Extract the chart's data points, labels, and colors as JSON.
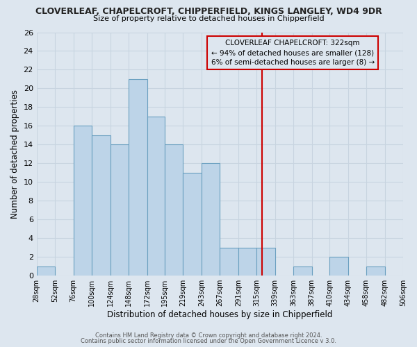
{
  "title": "CLOVERLEAF, CHAPELCROFT, CHIPPERFIELD, KINGS LANGLEY, WD4 9DR",
  "subtitle": "Size of property relative to detached houses in Chipperfield",
  "xlabel": "Distribution of detached houses by size in Chipperfield",
  "ylabel": "Number of detached properties",
  "bin_edges": [
    28,
    52,
    76,
    100,
    124,
    148,
    172,
    195,
    219,
    243,
    267,
    291,
    315,
    339,
    363,
    387,
    410,
    434,
    458,
    482,
    506
  ],
  "bin_labels": [
    "28sqm",
    "52sqm",
    "76sqm",
    "100sqm",
    "124sqm",
    "148sqm",
    "172sqm",
    "195sqm",
    "219sqm",
    "243sqm",
    "267sqm",
    "291sqm",
    "315sqm",
    "339sqm",
    "363sqm",
    "387sqm",
    "410sqm",
    "434sqm",
    "458sqm",
    "482sqm",
    "506sqm"
  ],
  "counts": [
    1,
    0,
    16,
    15,
    14,
    21,
    17,
    14,
    11,
    12,
    3,
    3,
    3,
    0,
    1,
    0,
    2,
    0,
    1,
    0
  ],
  "bar_facecolor": "#bdd4e8",
  "bar_edgecolor": "#6a9fc0",
  "marker_value": 322,
  "marker_color": "#cc0000",
  "annotation_title": "CLOVERLEAF CHAPELCROFT: 322sqm",
  "annotation_line1": "← 94% of detached houses are smaller (128)",
  "annotation_line2": "6% of semi-detached houses are larger (8) →",
  "annotation_box_color": "#cc0000",
  "ylim": [
    0,
    26
  ],
  "yticks": [
    0,
    2,
    4,
    6,
    8,
    10,
    12,
    14,
    16,
    18,
    20,
    22,
    24,
    26
  ],
  "grid_color": "#c8d4e0",
  "bg_color": "#dde6ef",
  "footer_line1": "Contains HM Land Registry data © Crown copyright and database right 2024.",
  "footer_line2": "Contains public sector information licensed under the Open Government Licence v 3.0."
}
